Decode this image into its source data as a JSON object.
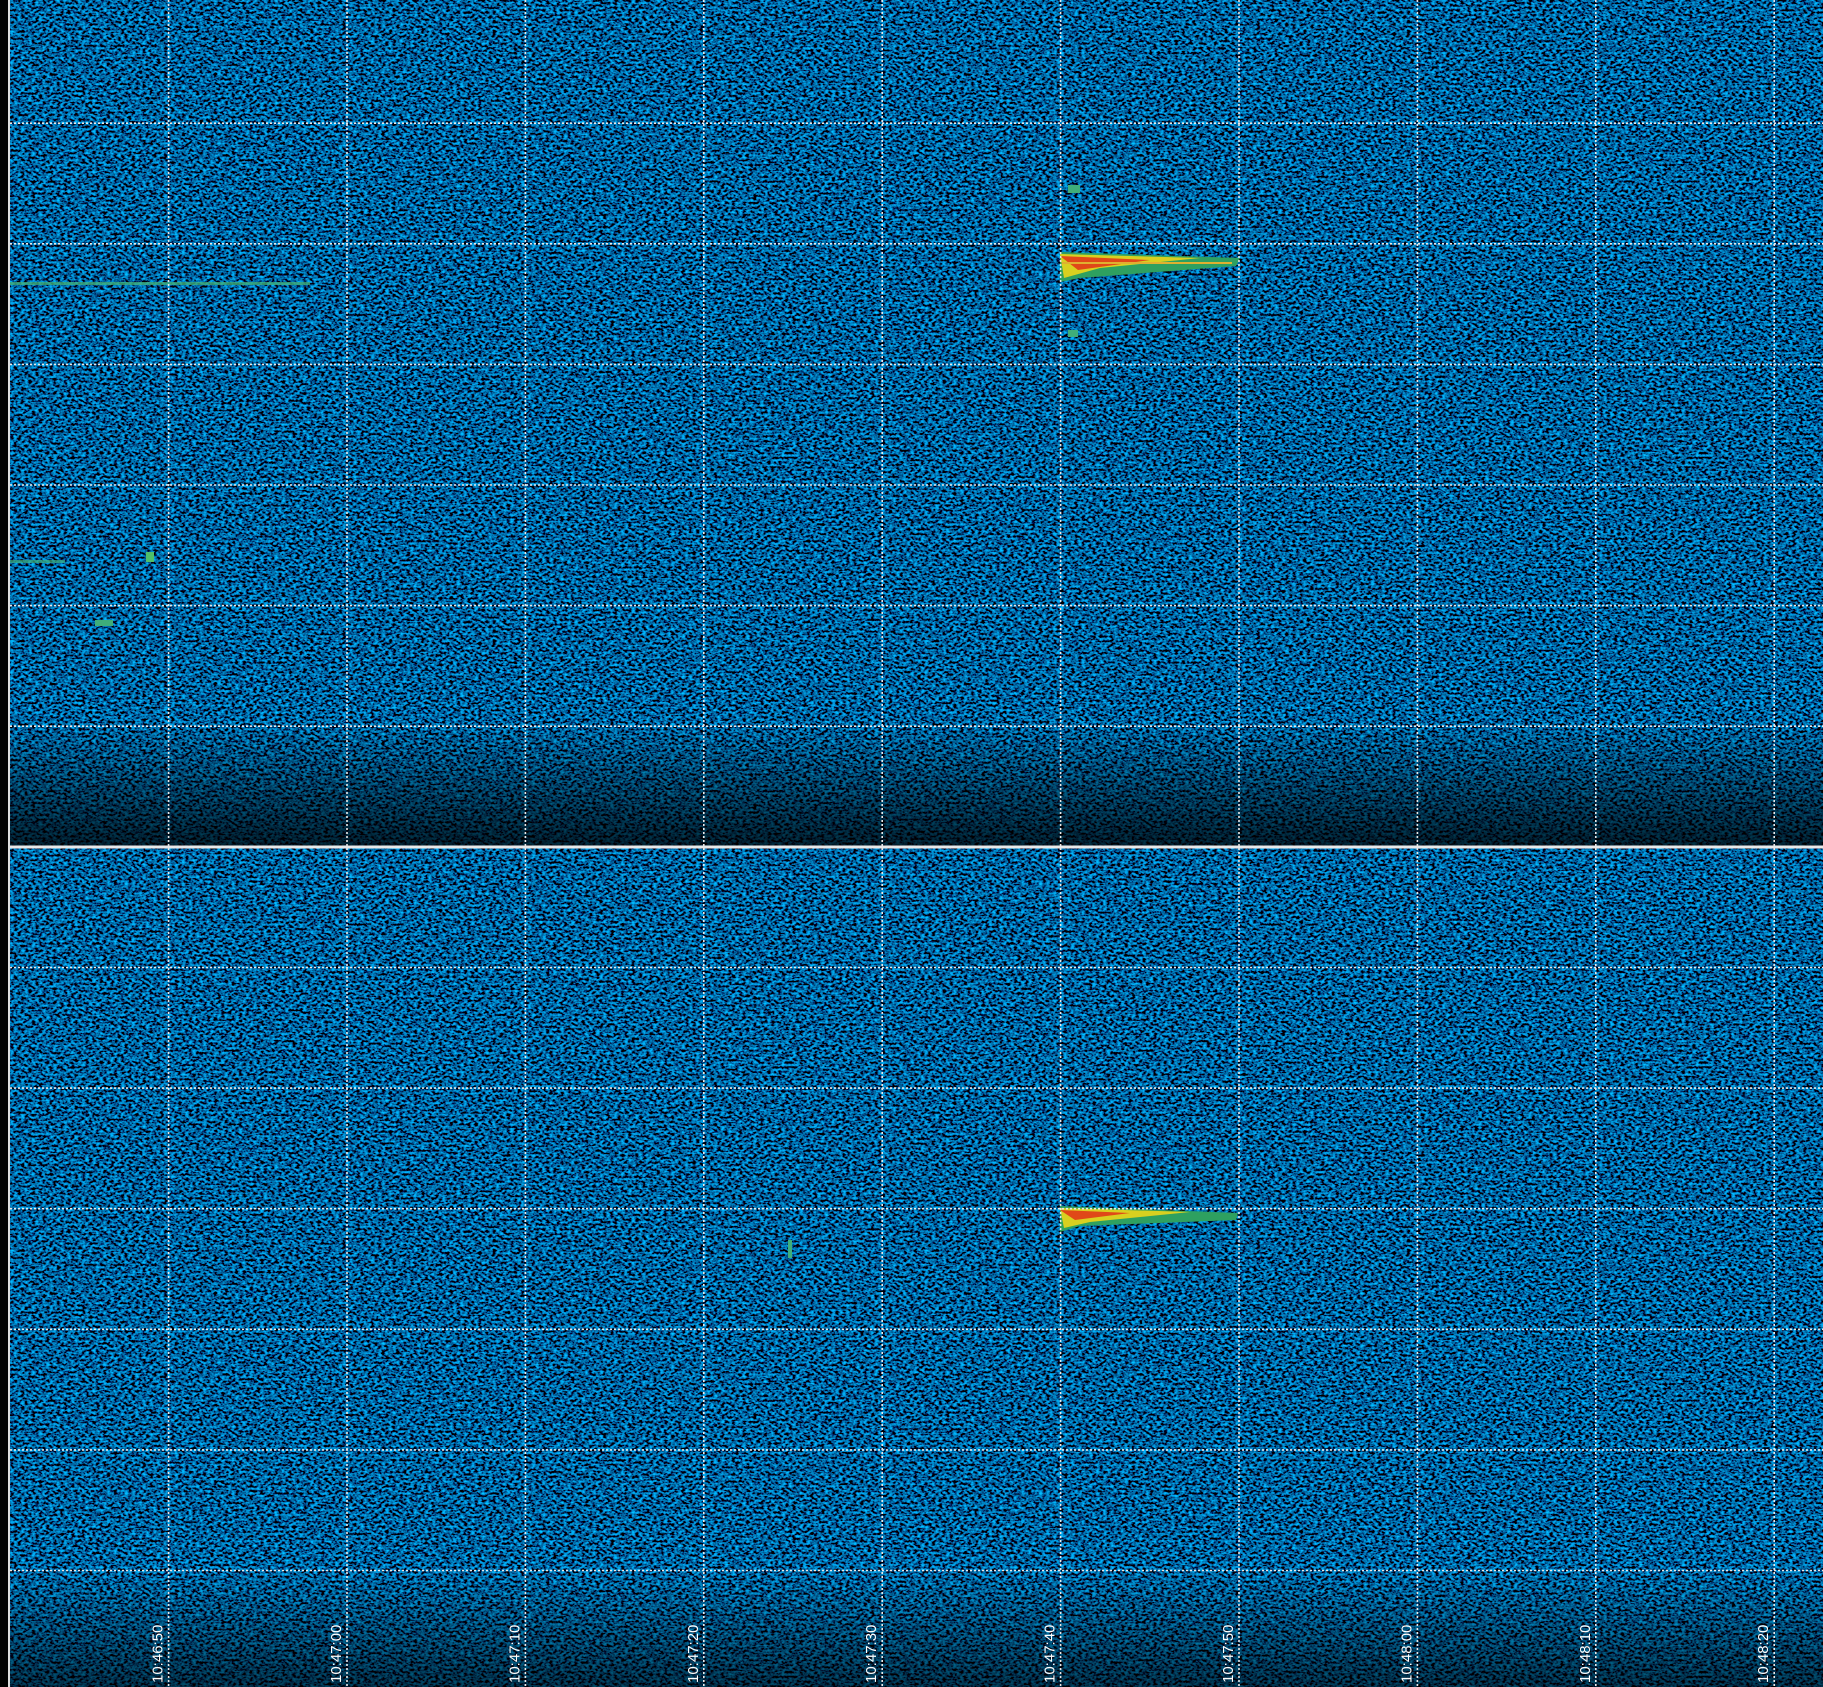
{
  "chart_data": {
    "type": "spectrogram",
    "x": [
      "10:46:50",
      "10:47:00",
      "10:47:10",
      "10:47:20",
      "10:47:30",
      "10:47:40",
      "10:47:50",
      "10:48:00",
      "10:48:10",
      "10:48:20"
    ],
    "grid": true
  }
}
